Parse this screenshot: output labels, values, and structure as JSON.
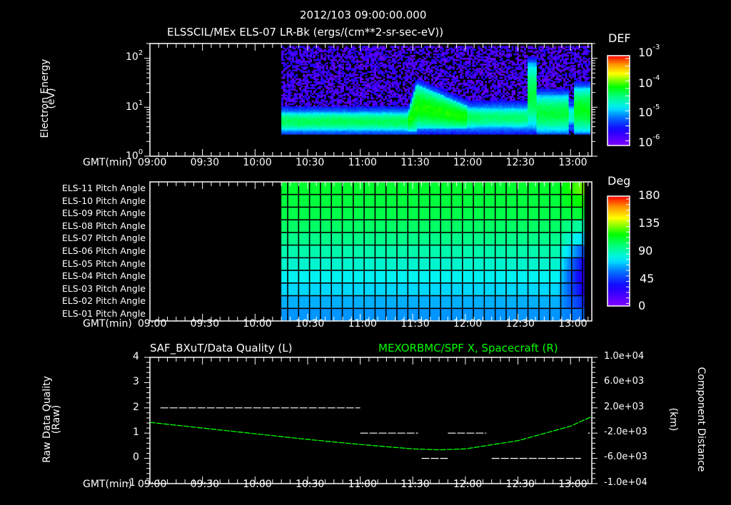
{
  "header": {
    "timestamp": "2012/103 09:00:00.000",
    "title": "ELSSCIL/MEx ELS-07 LR-Bk  (ergs/(cm**2-sr-sec-eV))"
  },
  "x_axis": {
    "label": "GMT(min)",
    "ticks": [
      "09:00",
      "09:30",
      "10:00",
      "10:30",
      "11:00",
      "11:30",
      "12:00",
      "12:30",
      "13:00"
    ]
  },
  "panel1": {
    "ylabel_line1": "Electron Energy",
    "ylabel_line2": "(eV)",
    "yticks": [
      {
        "base": "10",
        "exp": "2"
      },
      {
        "base": "10",
        "exp": "1"
      },
      {
        "base": "10",
        "exp": "0"
      }
    ],
    "colorbar": {
      "title": "DEF",
      "ticks": [
        {
          "base": "10",
          "exp": "-3"
        },
        {
          "base": "10",
          "exp": "-4"
        },
        {
          "base": "10",
          "exp": "-5"
        },
        {
          "base": "10",
          "exp": "-6"
        }
      ]
    }
  },
  "panel2": {
    "rows": [
      "ELS-11 Pitch Angle",
      "ELS-10 Pitch Angle",
      "ELS-09 Pitch Angle",
      "ELS-08 Pitch Angle",
      "ELS-07 Pitch Angle",
      "ELS-06 Pitch Angle",
      "ELS-05 Pitch Angle",
      "ELS-04 Pitch Angle",
      "ELS-03 Pitch Angle",
      "ELS-02 Pitch Angle",
      "ELS-01 Pitch Angle"
    ],
    "colorbar": {
      "title": "Deg",
      "ticks": [
        "180",
        "135",
        "90",
        "45",
        "0"
      ]
    }
  },
  "panel3": {
    "left_title": "SAF_BXuT/Data Quality (L)",
    "right_title": "MEXORBMC/SPF X, Spacecraft (R)",
    "ylabel_left_line1": "Raw Data Quality",
    "ylabel_left_line2": "(Raw)",
    "ylabel_right_line1": "Component Distance",
    "ylabel_right_line2": "(km)",
    "yticks_left": [
      "4",
      "3",
      "2",
      "1",
      "0",
      "-1"
    ],
    "yticks_right": [
      "1.0e+04",
      "6.0e+03",
      "2.0e+03",
      "-2.0e+03",
      "-6.0e+03",
      "-1.0e+04"
    ]
  },
  "colors": {
    "background": "#000000",
    "axes": "#ffffff",
    "orbit_line": "#00ff00"
  },
  "chart_data": [
    {
      "type": "heatmap",
      "title": "ELSSCIL/MEx ELS-07 LR-Bk (ergs/(cm**2-sr-sec-eV))",
      "xlabel": "GMT(min)",
      "ylabel": "Electron Energy (eV)",
      "yscale": "log",
      "ylim": [
        1,
        200
      ],
      "xlim": [
        "09:00",
        "13:12"
      ],
      "data_start": "10:15",
      "colorbar": {
        "label": "DEF",
        "scale": "log",
        "range": [
          1e-06,
          0.001
        ]
      },
      "features": [
        {
          "time": "10:15-11:25",
          "band_eV": [
            3,
            8
          ],
          "peak_DEF": 2e-05
        },
        {
          "time": "11:27",
          "event": "energization spike up to ~30 eV",
          "peak_DEF": 6e-05
        },
        {
          "time": "11:30-12:30",
          "band_eV": [
            3.5,
            12
          ],
          "peak_DEF": 3e-05
        },
        {
          "time": "12:37",
          "event": "narrow spike up to ~60 eV"
        },
        {
          "time": "12:40-12:58",
          "band_eV": [
            3,
            15
          ]
        },
        {
          "time": "13:00",
          "event": "gap / dropout"
        },
        {
          "time": "13:02-13:12",
          "band_eV": [
            3,
            25
          ],
          "peak_DEF": 4e-05
        }
      ]
    },
    {
      "type": "heatmap",
      "title": "ELS Pitch Angles",
      "xlabel": "GMT(min)",
      "ylabel": "ELS anode",
      "categories": [
        "ELS-01",
        "ELS-02",
        "ELS-03",
        "ELS-04",
        "ELS-05",
        "ELS-06",
        "ELS-07",
        "ELS-08",
        "ELS-09",
        "ELS-10",
        "ELS-11"
      ],
      "data_start": "10:15",
      "colorbar": {
        "label": "Deg",
        "range": [
          0,
          180
        ]
      },
      "typical_values_deg": [
        62,
        66,
        72,
        78,
        84,
        90,
        96,
        102,
        106,
        108,
        110
      ],
      "end_values_deg_at_13:10": [
        55,
        40,
        28,
        22,
        30,
        48,
        70,
        90,
        110,
        120,
        130
      ]
    },
    {
      "type": "line",
      "title_left": "SAF_BXuT/Data Quality (L)",
      "title_right": "MEXORBMC/SPF X, Spacecraft (R)",
      "xlabel": "GMT(min)",
      "ylabel_left": "Raw Data Quality (Raw)",
      "ylabel_right": "Component Distance (km)",
      "ylim_left": [
        -1,
        4
      ],
      "ylim_right": [
        -10000,
        10000
      ],
      "series": [
        {
          "name": "Data Quality (L)",
          "axis": "left",
          "segments": [
            {
              "from": "09:06",
              "to": "11:00",
              "value": 2
            },
            {
              "from": "11:00",
              "to": "11:33",
              "value": 1
            },
            {
              "from": "11:35",
              "to": "11:50",
              "value": 0
            },
            {
              "from": "11:50",
              "to": "12:12",
              "value": 1
            },
            {
              "from": "12:15",
              "to": "13:06",
              "value": 0
            },
            {
              "from": "13:10",
              "to": "13:11",
              "value": 1
            }
          ]
        },
        {
          "name": "SPF X Spacecraft (R)",
          "axis": "right",
          "x": [
            "09:00",
            "09:30",
            "10:00",
            "10:30",
            "11:00",
            "11:30",
            "11:45",
            "12:00",
            "12:30",
            "13:00",
            "13:12"
          ],
          "values": [
            -300,
            -1200,
            -2100,
            -3000,
            -3800,
            -4500,
            -4650,
            -4500,
            -3200,
            -900,
            600
          ]
        }
      ]
    }
  ]
}
